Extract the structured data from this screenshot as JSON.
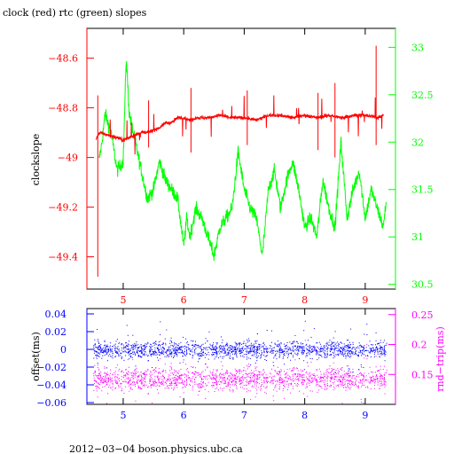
{
  "chart_data": [
    {
      "type": "line",
      "title": "clock (red) rtc (green) slopes",
      "ylabel": "clockslope",
      "y2label": "",
      "xlim": [
        4.4,
        9.5
      ],
      "ylim": [
        -49.53,
        -48.48
      ],
      "y2lim": [
        30.45,
        33.2
      ],
      "xticks": [
        5,
        6,
        7,
        8,
        9
      ],
      "xtick_labels": [
        "5",
        "6",
        "7",
        "8",
        "9"
      ],
      "yticks": [
        -48.6,
        -48.8,
        -49,
        -49.2,
        -49.4
      ],
      "ytick_labels": [
        "−48.6",
        "−48.8",
        "−49",
        "−49.2",
        "−49.4"
      ],
      "y2ticks": [
        33,
        32.5,
        32,
        31.5,
        31,
        30.5
      ],
      "y2tick_labels": [
        "33",
        "32.5",
        "32",
        "31.5",
        "31",
        "30.5"
      ],
      "colors": {
        "clock": "#ff0000",
        "rtc": "#00ff00",
        "axis_left": "#ff0000",
        "axis_right": "#00ff00"
      },
      "series": [
        {
          "name": "clock",
          "axis": "left",
          "x": [
            4.55,
            4.6,
            4.75,
            4.9,
            5.0,
            5.1,
            5.2,
            5.3,
            5.4,
            5.5,
            5.6,
            5.7,
            5.8,
            5.9,
            6.0,
            6.1,
            6.2,
            6.4,
            6.6,
            6.8,
            7.0,
            7.2,
            7.4,
            7.6,
            7.8,
            8.0,
            8.2,
            8.4,
            8.6,
            8.8,
            9.0,
            9.2,
            9.3
          ],
          "y": [
            -48.93,
            -48.9,
            -48.91,
            -48.92,
            -48.93,
            -48.92,
            -48.91,
            -48.9,
            -48.9,
            -48.89,
            -48.88,
            -48.86,
            -48.86,
            -48.84,
            -48.84,
            -48.85,
            -48.84,
            -48.84,
            -48.83,
            -48.84,
            -48.84,
            -48.85,
            -48.83,
            -48.83,
            -48.84,
            -48.83,
            -48.84,
            -48.83,
            -48.84,
            -48.83,
            -48.83,
            -48.84,
            -48.83
          ]
        },
        {
          "name": "rtc",
          "axis": "right",
          "x": [
            4.6,
            4.65,
            4.7,
            4.8,
            4.9,
            5.0,
            5.05,
            5.1,
            5.2,
            5.3,
            5.4,
            5.5,
            5.6,
            5.7,
            5.8,
            5.9,
            6.0,
            6.05,
            6.1,
            6.2,
            6.3,
            6.4,
            6.5,
            6.6,
            6.7,
            6.8,
            6.9,
            7.0,
            7.1,
            7.2,
            7.3,
            7.4,
            7.5,
            7.6,
            7.7,
            7.8,
            7.9,
            8.0,
            8.1,
            8.2,
            8.3,
            8.4,
            8.5,
            8.6,
            8.7,
            8.8,
            8.9,
            9.0,
            9.1,
            9.2,
            9.3,
            9.35
          ],
          "y": [
            31.8,
            32.0,
            32.3,
            32.1,
            31.7,
            31.8,
            32.9,
            32.3,
            32.0,
            31.7,
            31.4,
            31.5,
            31.8,
            31.6,
            31.5,
            31.4,
            30.9,
            31.2,
            31.0,
            31.3,
            31.2,
            31.0,
            30.8,
            31.1,
            31.2,
            31.3,
            31.9,
            31.5,
            31.3,
            31.2,
            30.8,
            31.5,
            31.7,
            31.3,
            31.6,
            31.8,
            31.5,
            31.1,
            31.2,
            31.0,
            31.6,
            31.3,
            31.1,
            32.0,
            31.2,
            31.5,
            31.7,
            31.2,
            31.5,
            31.3,
            31.1,
            31.4
          ]
        }
      ]
    },
    {
      "type": "scatter",
      "title": "",
      "ylabel": "offset(ms)",
      "y2label": "rnd−trip(ms)",
      "xlim": [
        4.4,
        9.5
      ],
      "ylim": [
        -0.062,
        0.046
      ],
      "y2lim": [
        0.1,
        0.26
      ],
      "xticks": [
        5,
        6,
        7,
        8,
        9
      ],
      "xtick_labels": [
        "5",
        "6",
        "7",
        "8",
        "9"
      ],
      "yticks": [
        0.04,
        0.02,
        0,
        -0.02,
        -0.04,
        -0.06
      ],
      "ytick_labels": [
        "0.04",
        "0.02",
        "0",
        "−0.02",
        "−0.04",
        "−0.06"
      ],
      "y2ticks": [
        0.25,
        0.2,
        0.15
      ],
      "y2tick_labels": [
        "0.25",
        "0.2",
        "0.15"
      ],
      "colors": {
        "offset": "#0000ff",
        "rndtrip": "#ff00ff",
        "axis_left": "#0000ff",
        "axis_right": "#ff00ff"
      },
      "series": [
        {
          "name": "offset",
          "axis": "left",
          "x_range": [
            4.5,
            9.35
          ],
          "center": 0.0,
          "spread": 0.01
        },
        {
          "name": "rnd−trip",
          "axis": "right",
          "x_range": [
            4.5,
            9.35
          ],
          "center": 0.143,
          "spread": 0.02
        }
      ]
    }
  ],
  "footer": "2012−03−04  boson.physics.ubc.ca"
}
